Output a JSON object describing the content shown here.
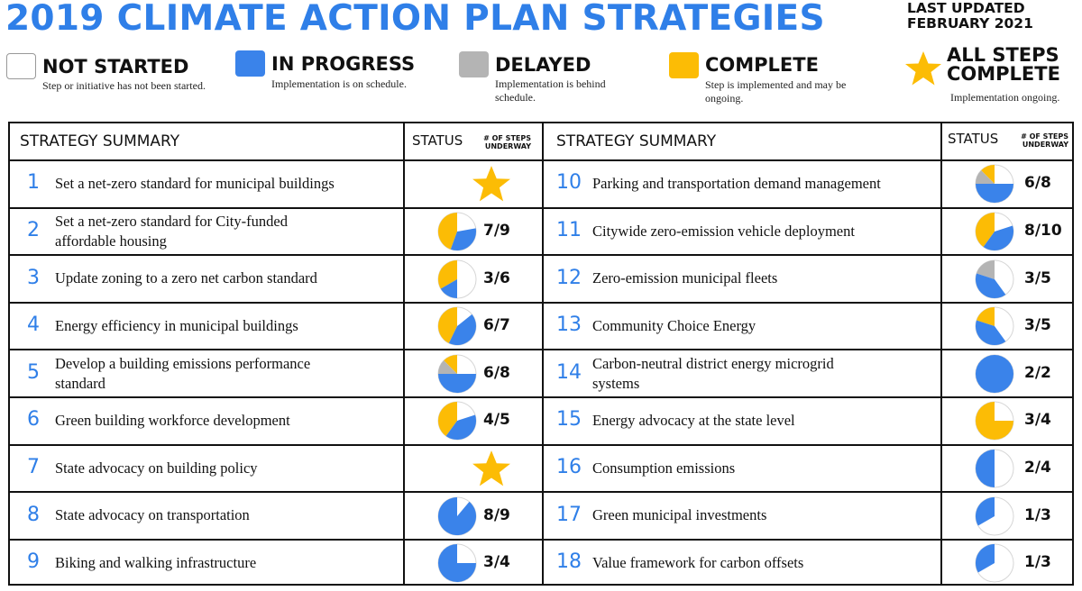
{
  "header": {
    "title": "2019 CLIMATE ACTION PLAN STRATEGIES",
    "updated_line1": "LAST UPDATED",
    "updated_line2": "FEBRUARY 2021"
  },
  "colors": {
    "accent": "#2f7fe8",
    "not_started": "#ffffff",
    "in_progress": "#3a83ea",
    "delayed": "#b4b4b4",
    "complete": "#fcbc05",
    "star": "#fcbc05"
  },
  "legend": [
    {
      "key": "not_started",
      "label": "NOT STARTED",
      "desc": "Step or initiative has not been started.",
      "icon": "white-swatch"
    },
    {
      "key": "in_progress",
      "label": "IN PROGRESS",
      "desc": "Implementation is on schedule.",
      "icon": "blue-swatch"
    },
    {
      "key": "delayed",
      "label": "DELAYED",
      "desc": "Implementation is behind schedule.",
      "icon": "gray-swatch"
    },
    {
      "key": "complete",
      "label": "COMPLETE",
      "desc": "Step is implemented and may be ongoing.",
      "icon": "yellow-swatch"
    },
    {
      "key": "all_complete",
      "label_line1": "ALL STEPS",
      "label_line2": "COMPLETE",
      "desc": "Implementation ongoing.",
      "icon": "star-icon"
    }
  ],
  "table_header": {
    "summary": "STRATEGY SUMMARY",
    "status": "STATUS",
    "steps_line1": "# OF STEPS",
    "steps_line2": "UNDERWAY"
  },
  "strategies": [
    {
      "num": "1",
      "lines": [
        "Set a net-zero standard for municipal buildings"
      ],
      "star": true,
      "steps": ""
    },
    {
      "num": "2",
      "lines": [
        "Set a net-zero standard for City-funded",
        "affordable housing"
      ],
      "steps": "7/9",
      "pie": {
        "complete": 4,
        "in_progress": 3,
        "delayed": 0,
        "not_started": 2
      }
    },
    {
      "num": "3",
      "lines": [
        "Update zoning to a zero net carbon standard"
      ],
      "steps": "3/6",
      "pie": {
        "complete": 2,
        "in_progress": 1,
        "delayed": 0,
        "not_started": 3
      }
    },
    {
      "num": "4",
      "lines": [
        "Energy efficiency in municipal buildings"
      ],
      "steps": "6/7",
      "pie": {
        "complete": 3,
        "in_progress": 3,
        "delayed": 0,
        "not_started": 1
      }
    },
    {
      "num": "5",
      "lines": [
        "Develop a building emissions performance",
        "standard"
      ],
      "steps": "6/8",
      "pie": {
        "complete": 1,
        "in_progress": 4,
        "delayed": 1,
        "not_started": 2
      }
    },
    {
      "num": "6",
      "lines": [
        "Green building workforce development"
      ],
      "steps": "4/5",
      "pie": {
        "complete": 2,
        "in_progress": 2,
        "delayed": 0,
        "not_started": 1
      }
    },
    {
      "num": "7",
      "lines": [
        "State advocacy on building policy"
      ],
      "star": true,
      "steps": ""
    },
    {
      "num": "8",
      "lines": [
        "State advocacy on transportation"
      ],
      "steps": "8/9",
      "pie": {
        "complete": 0,
        "in_progress": 8,
        "delayed": 0,
        "not_started": 1
      }
    },
    {
      "num": "9",
      "lines": [
        "Biking and walking infrastructure"
      ],
      "steps": "3/4",
      "pie": {
        "complete": 0,
        "in_progress": 3,
        "delayed": 0,
        "not_started": 1
      }
    },
    {
      "num": "10",
      "lines": [
        "Parking and transportation demand management"
      ],
      "steps": "6/8",
      "pie": {
        "complete": 1,
        "in_progress": 4,
        "delayed": 1,
        "not_started": 2
      }
    },
    {
      "num": "11",
      "lines": [
        "Citywide zero-emission vehicle deployment"
      ],
      "steps": "8/10",
      "pie": {
        "complete": 4,
        "in_progress": 4,
        "delayed": 0,
        "not_started": 2
      }
    },
    {
      "num": "12",
      "lines": [
        "Zero-emission municipal fleets"
      ],
      "steps": "3/5",
      "pie": {
        "complete": 0,
        "in_progress": 2,
        "delayed": 1,
        "not_started": 2
      }
    },
    {
      "num": "13",
      "lines": [
        "Community Choice Energy"
      ],
      "steps": "3/5",
      "pie": {
        "complete": 1,
        "in_progress": 2,
        "delayed": 0,
        "not_started": 2
      }
    },
    {
      "num": "14",
      "lines": [
        "Carbon-neutral district energy microgrid",
        "systems"
      ],
      "steps": "2/2",
      "pie": {
        "complete": 0,
        "in_progress": 2,
        "delayed": 0,
        "not_started": 0
      }
    },
    {
      "num": "15",
      "lines": [
        "Energy advocacy at the state level"
      ],
      "steps": "3/4",
      "pie": {
        "complete": 3,
        "in_progress": 0,
        "delayed": 0,
        "not_started": 1
      }
    },
    {
      "num": "16",
      "lines": [
        "Consumption emissions"
      ],
      "steps": "2/4",
      "pie": {
        "complete": 0,
        "in_progress": 2,
        "delayed": 0,
        "not_started": 2
      }
    },
    {
      "num": "17",
      "lines": [
        "Green municipal investments"
      ],
      "steps": "1/3",
      "pie": {
        "complete": 0,
        "in_progress": 1,
        "delayed": 0,
        "not_started": 2
      }
    },
    {
      "num": "18",
      "lines": [
        "Value framework for carbon offsets"
      ],
      "steps": "1/3",
      "pie": {
        "complete": 0,
        "in_progress": 1,
        "delayed": 0,
        "not_started": 2
      }
    }
  ]
}
